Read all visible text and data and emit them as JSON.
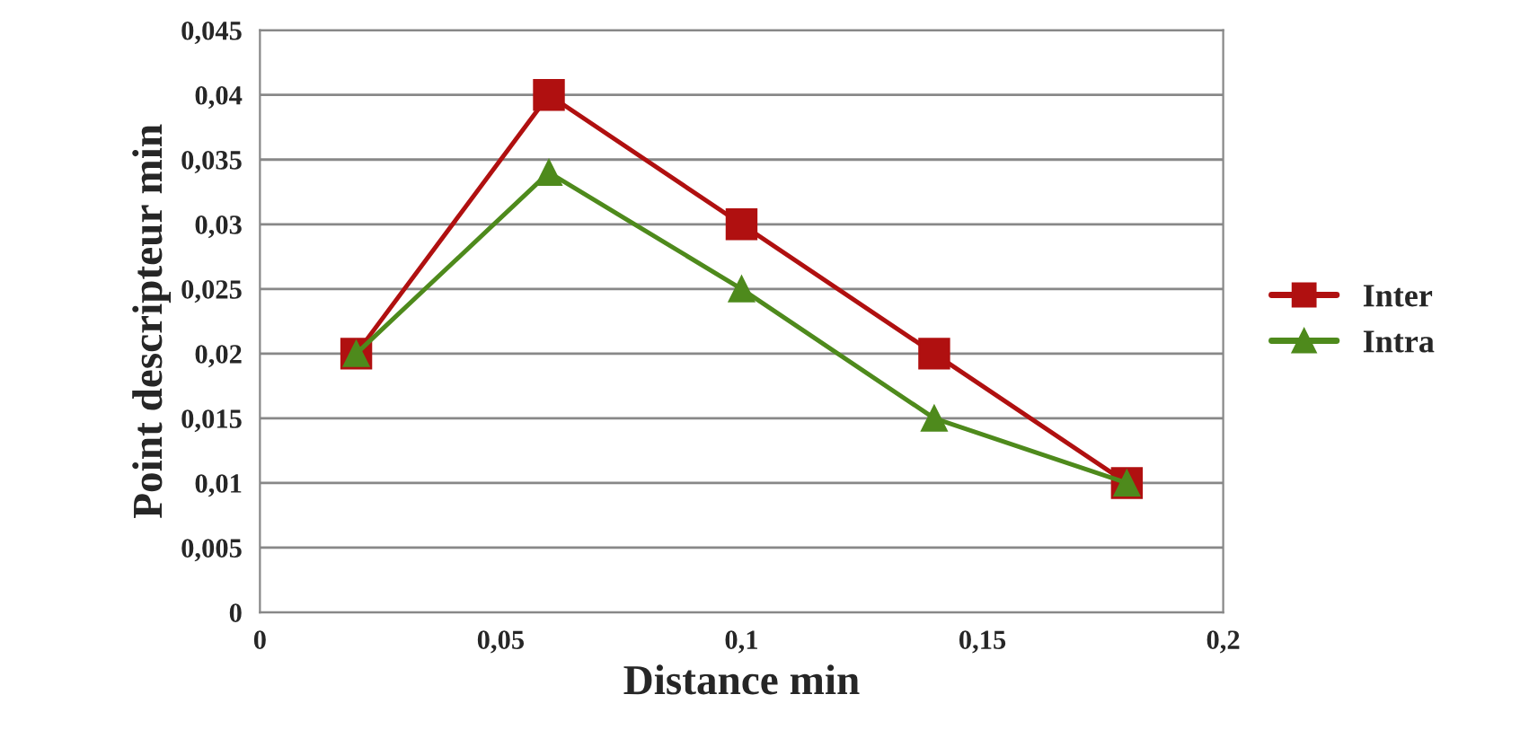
{
  "chart_data": {
    "type": "line",
    "xlabel": "Distance min",
    "ylabel": "Point descripteur min",
    "x": [
      0.02,
      0.06,
      0.1,
      0.14,
      0.18
    ],
    "series": [
      {
        "name": "Inter",
        "color": "#b01010",
        "marker": "square",
        "values": [
          0.02,
          0.04,
          0.03,
          0.02,
          0.01
        ]
      },
      {
        "name": "Intra",
        "color": "#4e8a1c",
        "marker": "triangle",
        "values": [
          0.02,
          0.034,
          0.025,
          0.015,
          0.01
        ]
      }
    ],
    "xlim": [
      0,
      0.2
    ],
    "xticks": [
      0,
      {
        "value": 0.05,
        "label": "0,05"
      },
      {
        "value": 0.1,
        "label": "0,1"
      },
      {
        "value": 0.15,
        "label": "0,15"
      },
      {
        "value": 0.2,
        "label": "0,2"
      }
    ],
    "ylim": [
      0,
      0.045
    ],
    "yticks": [
      0,
      {
        "value": 0.005,
        "label": "0,005"
      },
      {
        "value": 0.01,
        "label": "0,01"
      },
      {
        "value": 0.015,
        "label": "0,015"
      },
      {
        "value": 0.02,
        "label": "0,02"
      },
      {
        "value": 0.025,
        "label": "0,025"
      },
      {
        "value": 0.03,
        "label": "0,03"
      },
      {
        "value": 0.035,
        "label": "0,035"
      },
      {
        "value": 0.04,
        "label": "0,04"
      },
      {
        "value": 0.045,
        "label": "0,045"
      }
    ],
    "grid": "y",
    "legend": "right",
    "line_style": "solid"
  }
}
